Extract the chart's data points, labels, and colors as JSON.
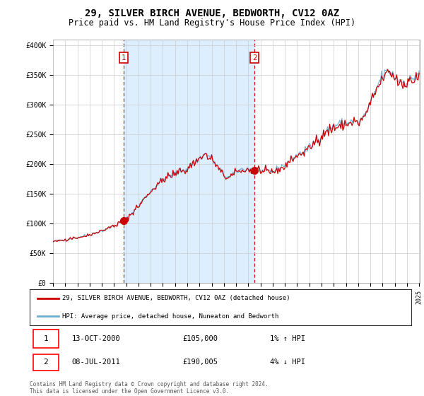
{
  "title": "29, SILVER BIRCH AVENUE, BEDWORTH, CV12 0AZ",
  "subtitle": "Price paid vs. HM Land Registry's House Price Index (HPI)",
  "title_fontsize": 10,
  "subtitle_fontsize": 8.5,
  "background_color": "#ffffff",
  "plot_bg_color": "#ffffff",
  "shade_color": "#ddeeff",
  "grid_color": "#cccccc",
  "ylabel_ticks": [
    "£0",
    "£50K",
    "£100K",
    "£150K",
    "£200K",
    "£250K",
    "£300K",
    "£350K",
    "£400K"
  ],
  "ytick_values": [
    0,
    50000,
    100000,
    150000,
    200000,
    250000,
    300000,
    350000,
    400000
  ],
  "ylim": [
    0,
    410000
  ],
  "x_start_year": 1995,
  "x_end_year": 2025,
  "hpi_color": "#6baed6",
  "price_color": "#cc0000",
  "sale1_year": 2000.79,
  "sale1_price": 105000,
  "sale1_label": "1",
  "sale1_date": "13-OCT-2000",
  "sale1_hpi_pct": "1%",
  "sale1_hpi_dir": "↑",
  "sale2_year": 2011.52,
  "sale2_price": 190005,
  "sale2_label": "2",
  "sale2_date": "08-JUL-2011",
  "sale2_hpi_pct": "4%",
  "sale2_hpi_dir": "↓",
  "legend_label_price": "29, SILVER BIRCH AVENUE, BEDWORTH, CV12 0AZ (detached house)",
  "legend_label_hpi": "HPI: Average price, detached house, Nuneaton and Bedworth",
  "footer1": "Contains HM Land Registry data © Crown copyright and database right 2024.",
  "footer2": "This data is licensed under the Open Government Licence v3.0."
}
